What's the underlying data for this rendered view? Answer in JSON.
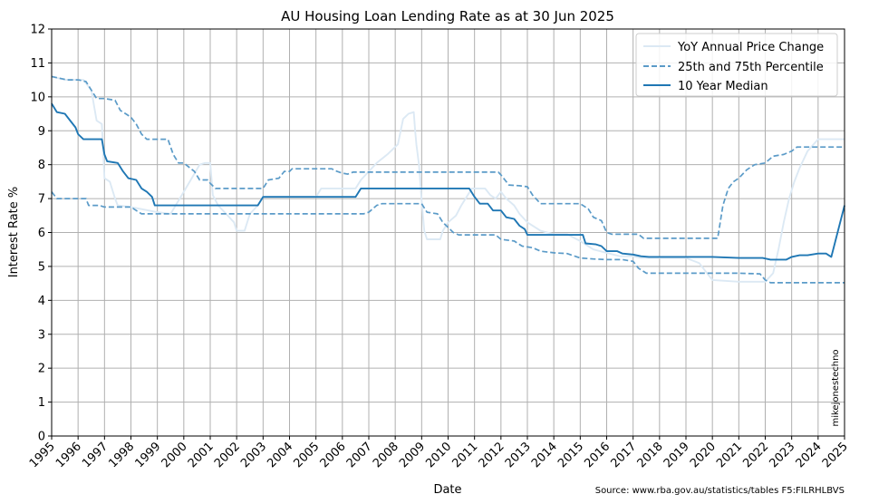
{
  "chart_data": {
    "type": "line",
    "title": "AU Housing Loan Lending Rate as at 30 Jun 2025",
    "xlabel": "Date",
    "ylabel": "Interest Rate %",
    "xlim": [
      1995,
      2025
    ],
    "ylim": [
      0,
      12
    ],
    "x_ticks": [
      "1995",
      "1996",
      "1997",
      "1998",
      "1999",
      "2000",
      "2001",
      "2002",
      "2003",
      "2004",
      "2005",
      "2006",
      "2007",
      "2008",
      "2009",
      "2010",
      "2011",
      "2012",
      "2013",
      "2014",
      "2015",
      "2016",
      "2017",
      "2018",
      "2019",
      "2020",
      "2021",
      "2022",
      "2023",
      "2024",
      "2025"
    ],
    "y_ticks": [
      "0",
      "1",
      "2",
      "3",
      "4",
      "5",
      "6",
      "7",
      "8",
      "9",
      "10",
      "11",
      "12"
    ],
    "grid": true,
    "legend_position": "top-right",
    "watermark": "mikejonestechno",
    "source": "Source: www.rba.gov.au/statistics/tables F5:FILRHLBVS",
    "series": [
      {
        "name": "YoY Annual Price Change",
        "color": "#dce9f4",
        "style": "solid",
        "points": [
          [
            1995,
            10.6
          ],
          [
            1995.5,
            10.5
          ],
          [
            1996.2,
            10.5
          ],
          [
            1996.5,
            10.2
          ],
          [
            1996.7,
            9.3
          ],
          [
            1996.9,
            9.2
          ],
          [
            1997,
            7.6
          ],
          [
            1997.2,
            7.5
          ],
          [
            1997.4,
            7.0
          ],
          [
            1997.5,
            6.8
          ],
          [
            1998,
            6.75
          ],
          [
            1999,
            6.6
          ],
          [
            1999.5,
            6.55
          ],
          [
            2000,
            7.2
          ],
          [
            2000.3,
            7.6
          ],
          [
            2000.6,
            8.0
          ],
          [
            2000.8,
            8.05
          ],
          [
            2001.0,
            8.05
          ],
          [
            2001.1,
            7.1
          ],
          [
            2001.3,
            6.8
          ],
          [
            2001.6,
            6.55
          ],
          [
            2001.9,
            6.3
          ],
          [
            2002,
            6.05
          ],
          [
            2002.3,
            6.05
          ],
          [
            2002.5,
            6.55
          ],
          [
            2002.8,
            6.8
          ],
          [
            2003,
            7.05
          ],
          [
            2004,
            7.05
          ],
          [
            2005,
            7.05
          ],
          [
            2005.2,
            7.3
          ],
          [
            2006,
            7.3
          ],
          [
            2006.5,
            7.3
          ],
          [
            2006.7,
            7.55
          ],
          [
            2007,
            7.8
          ],
          [
            2007.3,
            8.05
          ],
          [
            2007.7,
            8.3
          ],
          [
            2008.1,
            8.6
          ],
          [
            2008.3,
            9.35
          ],
          [
            2008.5,
            9.5
          ],
          [
            2008.7,
            9.55
          ],
          [
            2008.75,
            9.05
          ],
          [
            2008.8,
            8.6
          ],
          [
            2008.9,
            8.0
          ],
          [
            2009,
            6.95
          ],
          [
            2009.1,
            6.05
          ],
          [
            2009.2,
            5.8
          ],
          [
            2009.5,
            5.8
          ],
          [
            2009.7,
            5.8
          ],
          [
            2009.8,
            6.05
          ],
          [
            2010,
            6.3
          ],
          [
            2010.3,
            6.5
          ],
          [
            2010.5,
            6.8
          ],
          [
            2010.7,
            7.05
          ],
          [
            2010.9,
            7.3
          ],
          [
            2011.1,
            7.3
          ],
          [
            2011.4,
            7.3
          ],
          [
            2011.6,
            7.1
          ],
          [
            2011.8,
            7.0
          ],
          [
            2012,
            7.2
          ],
          [
            2012.2,
            7.0
          ],
          [
            2012.5,
            6.8
          ],
          [
            2012.7,
            6.55
          ],
          [
            2013,
            6.3
          ],
          [
            2013.5,
            6.05
          ],
          [
            2014,
            5.95
          ],
          [
            2014.5,
            5.95
          ],
          [
            2015,
            5.75
          ],
          [
            2015.5,
            5.5
          ],
          [
            2016,
            5.4
          ],
          [
            2016.5,
            5.3
          ],
          [
            2017,
            5.3
          ],
          [
            2017.3,
            5.25
          ],
          [
            2018,
            5.25
          ],
          [
            2019,
            5.25
          ],
          [
            2019.5,
            5.1
          ],
          [
            2019.8,
            4.8
          ],
          [
            2020,
            4.6
          ],
          [
            2021,
            4.55
          ],
          [
            2022,
            4.55
          ],
          [
            2022.3,
            4.8
          ],
          [
            2022.5,
            5.5
          ],
          [
            2022.7,
            6.3
          ],
          [
            2022.9,
            7.0
          ],
          [
            2023.1,
            7.5
          ],
          [
            2023.3,
            7.9
          ],
          [
            2023.6,
            8.4
          ],
          [
            2024,
            8.75
          ],
          [
            2024.5,
            8.75
          ],
          [
            2025,
            8.75
          ]
        ]
      },
      {
        "name": "25th and 75th Percentile",
        "color": "#5b9bc8",
        "style": "dashed",
        "points": [
          [
            1995,
            10.6
          ],
          [
            1995.3,
            10.55
          ],
          [
            1995.6,
            10.5
          ],
          [
            1996,
            10.5
          ],
          [
            1996.3,
            10.45
          ],
          [
            1996.5,
            10.2
          ],
          [
            1996.7,
            9.95
          ],
          [
            1997,
            9.95
          ],
          [
            1997.4,
            9.9
          ],
          [
            1997.6,
            9.6
          ],
          [
            1997.8,
            9.5
          ],
          [
            1998,
            9.4
          ],
          [
            1998.2,
            9.2
          ],
          [
            1998.4,
            8.9
          ],
          [
            1998.6,
            8.75
          ],
          [
            1999,
            8.75
          ],
          [
            1999.4,
            8.75
          ],
          [
            1999.6,
            8.3
          ],
          [
            1999.8,
            8.05
          ],
          [
            2000,
            8.05
          ],
          [
            2000.4,
            7.8
          ],
          [
            2000.6,
            7.55
          ],
          [
            2000.9,
            7.55
          ],
          [
            2001,
            7.45
          ],
          [
            2001.2,
            7.3
          ],
          [
            2002,
            7.3
          ],
          [
            2002.6,
            7.3
          ],
          [
            2002.9,
            7.3
          ],
          [
            2003,
            7.3
          ],
          [
            2003.2,
            7.55
          ],
          [
            2003.6,
            7.6
          ],
          [
            2003.8,
            7.8
          ],
          [
            2004,
            7.8
          ],
          [
            2004.1,
            7.88
          ],
          [
            2005,
            7.88
          ],
          [
            2005.6,
            7.88
          ],
          [
            2005.8,
            7.8
          ],
          [
            2006,
            7.75
          ],
          [
            2006.2,
            7.72
          ],
          [
            2006.4,
            7.78
          ],
          [
            2007,
            7.78
          ],
          [
            2008,
            7.78
          ],
          [
            2009,
            7.78
          ],
          [
            2010,
            7.78
          ],
          [
            2011,
            7.78
          ],
          [
            2011.9,
            7.78
          ],
          [
            2012,
            7.7
          ],
          [
            2012.3,
            7.4
          ],
          [
            2012.7,
            7.38
          ],
          [
            2013,
            7.35
          ],
          [
            2013.2,
            7.1
          ],
          [
            2013.5,
            6.85
          ],
          [
            2014,
            6.85
          ],
          [
            2014.5,
            6.85
          ],
          [
            2015,
            6.85
          ],
          [
            2015.3,
            6.7
          ],
          [
            2015.5,
            6.45
          ],
          [
            2015.8,
            6.35
          ],
          [
            2016,
            6.0
          ],
          [
            2016.2,
            5.95
          ],
          [
            2016.5,
            5.95
          ],
          [
            2017,
            5.95
          ],
          [
            2017.2,
            5.95
          ],
          [
            2017.4,
            5.83
          ],
          [
            2018,
            5.83
          ],
          [
            2019,
            5.83
          ],
          [
            2019.5,
            5.83
          ],
          [
            2020.2,
            5.83
          ],
          [
            2020.4,
            6.8
          ],
          [
            2020.6,
            7.3
          ],
          [
            2020.8,
            7.5
          ],
          [
            2021,
            7.6
          ],
          [
            2021.3,
            7.85
          ],
          [
            2021.6,
            8.0
          ],
          [
            2022,
            8.05
          ],
          [
            2022.3,
            8.25
          ],
          [
            2022.7,
            8.3
          ],
          [
            2023,
            8.4
          ],
          [
            2023.2,
            8.52
          ],
          [
            2024,
            8.52
          ],
          [
            2025,
            8.52
          ]
        ]
      },
      {
        "name": "25th Percentile",
        "color": "#5b9bc8",
        "style": "dashed",
        "legend": false,
        "points": [
          [
            1995,
            7.2
          ],
          [
            1995.2,
            7.0
          ],
          [
            1996,
            7.0
          ],
          [
            1996.3,
            7.0
          ],
          [
            1996.4,
            6.8
          ],
          [
            1996.8,
            6.8
          ],
          [
            1997,
            6.75
          ],
          [
            1998,
            6.75
          ],
          [
            1998.2,
            6.65
          ],
          [
            1998.4,
            6.55
          ],
          [
            1999,
            6.55
          ],
          [
            2000,
            6.55
          ],
          [
            2001,
            6.55
          ],
          [
            2002,
            6.55
          ],
          [
            2003,
            6.55
          ],
          [
            2004,
            6.55
          ],
          [
            2005,
            6.55
          ],
          [
            2006,
            6.55
          ],
          [
            2006.8,
            6.55
          ],
          [
            2007,
            6.6
          ],
          [
            2007.3,
            6.8
          ],
          [
            2007.5,
            6.85
          ],
          [
            2008,
            6.85
          ],
          [
            2009,
            6.85
          ],
          [
            2009.2,
            6.6
          ],
          [
            2009.6,
            6.55
          ],
          [
            2009.8,
            6.3
          ],
          [
            2010,
            6.15
          ],
          [
            2010.2,
            6.0
          ],
          [
            2010.4,
            5.93
          ],
          [
            2011,
            5.93
          ],
          [
            2011.8,
            5.93
          ],
          [
            2012,
            5.8
          ],
          [
            2012.5,
            5.75
          ],
          [
            2012.8,
            5.6
          ],
          [
            2013.2,
            5.55
          ],
          [
            2013.5,
            5.45
          ],
          [
            2014,
            5.4
          ],
          [
            2014.5,
            5.38
          ],
          [
            2015,
            5.25
          ],
          [
            2015.5,
            5.22
          ],
          [
            2016,
            5.2
          ],
          [
            2016.6,
            5.2
          ],
          [
            2017,
            5.15
          ],
          [
            2017.2,
            4.95
          ],
          [
            2017.5,
            4.8
          ],
          [
            2018,
            4.8
          ],
          [
            2019,
            4.8
          ],
          [
            2020,
            4.8
          ],
          [
            2021,
            4.8
          ],
          [
            2021.8,
            4.78
          ],
          [
            2022,
            4.6
          ],
          [
            2022.2,
            4.52
          ],
          [
            2023,
            4.52
          ],
          [
            2024,
            4.52
          ],
          [
            2025,
            4.52
          ]
        ]
      },
      {
        "name": "10 Year Median",
        "color": "#1f77b4",
        "style": "solid",
        "points": [
          [
            1995,
            9.8
          ],
          [
            1995.2,
            9.55
          ],
          [
            1995.5,
            9.5
          ],
          [
            1995.7,
            9.3
          ],
          [
            1995.9,
            9.1
          ],
          [
            1996,
            8.9
          ],
          [
            1996.2,
            8.75
          ],
          [
            1996.5,
            8.75
          ],
          [
            1996.9,
            8.75
          ],
          [
            1997,
            8.3
          ],
          [
            1997.1,
            8.1
          ],
          [
            1997.5,
            8.05
          ],
          [
            1997.7,
            7.8
          ],
          [
            1997.9,
            7.6
          ],
          [
            1998.2,
            7.55
          ],
          [
            1998.4,
            7.3
          ],
          [
            1998.6,
            7.2
          ],
          [
            1998.8,
            7.05
          ],
          [
            1998.9,
            6.8
          ],
          [
            1999,
            6.8
          ],
          [
            2000,
            6.8
          ],
          [
            2001,
            6.8
          ],
          [
            2002,
            6.8
          ],
          [
            2002.8,
            6.8
          ],
          [
            2003,
            7.05
          ],
          [
            2004,
            7.05
          ],
          [
            2005,
            7.05
          ],
          [
            2006,
            7.05
          ],
          [
            2006.5,
            7.05
          ],
          [
            2006.7,
            7.3
          ],
          [
            2007,
            7.3
          ],
          [
            2008,
            7.3
          ],
          [
            2009,
            7.3
          ],
          [
            2010,
            7.3
          ],
          [
            2010.8,
            7.3
          ],
          [
            2011,
            7.05
          ],
          [
            2011.2,
            6.85
          ],
          [
            2011.5,
            6.85
          ],
          [
            2011.7,
            6.65
          ],
          [
            2012,
            6.65
          ],
          [
            2012.2,
            6.45
          ],
          [
            2012.5,
            6.4
          ],
          [
            2012.7,
            6.2
          ],
          [
            2012.9,
            6.1
          ],
          [
            2013,
            5.93
          ],
          [
            2014,
            5.93
          ],
          [
            2015,
            5.93
          ],
          [
            2015.1,
            5.93
          ],
          [
            2015.2,
            5.68
          ],
          [
            2015.6,
            5.65
          ],
          [
            2015.8,
            5.6
          ],
          [
            2016,
            5.45
          ],
          [
            2016.4,
            5.45
          ],
          [
            2016.6,
            5.38
          ],
          [
            2017,
            5.35
          ],
          [
            2017.3,
            5.3
          ],
          [
            2017.6,
            5.28
          ],
          [
            2018,
            5.28
          ],
          [
            2019,
            5.28
          ],
          [
            2020,
            5.28
          ],
          [
            2021,
            5.25
          ],
          [
            2021.5,
            5.25
          ],
          [
            2021.9,
            5.25
          ],
          [
            2022.2,
            5.2
          ],
          [
            2022.8,
            5.2
          ],
          [
            2023,
            5.28
          ],
          [
            2023.3,
            5.33
          ],
          [
            2023.6,
            5.33
          ],
          [
            2024,
            5.38
          ],
          [
            2024.3,
            5.38
          ],
          [
            2024.5,
            5.28
          ],
          [
            2025,
            6.8
          ]
        ]
      }
    ]
  }
}
